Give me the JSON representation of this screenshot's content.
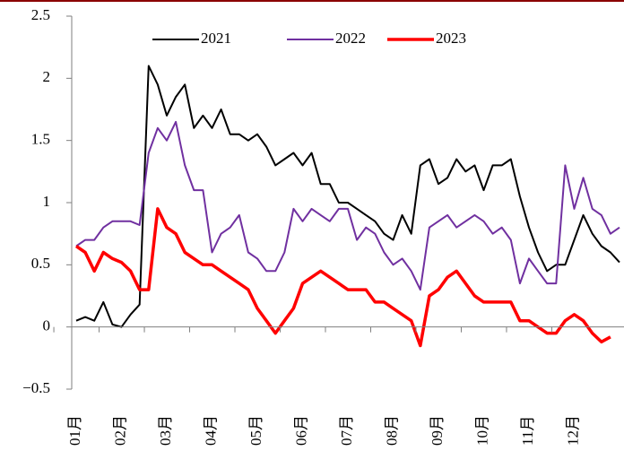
{
  "chart_data": {
    "type": "line",
    "x": [
      0,
      0.2,
      0.4,
      0.6,
      0.8,
      1,
      1.2,
      1.4,
      1.6,
      1.8,
      2,
      2.2,
      2.4,
      2.6,
      2.8,
      3,
      3.2,
      3.4,
      3.6,
      3.8,
      4,
      4.2,
      4.4,
      4.6,
      4.8,
      5,
      5.2,
      5.4,
      5.6,
      5.8,
      6,
      6.2,
      6.4,
      6.6,
      6.8,
      7,
      7.2,
      7.4,
      7.6,
      7.8,
      8,
      8.2,
      8.4,
      8.6,
      8.8,
      9,
      9.2,
      9.4,
      9.6,
      9.8,
      10,
      10.2,
      10.4,
      10.6,
      10.8,
      11,
      11.2,
      11.4,
      11.6,
      11.8,
      12
    ],
    "series": [
      {
        "name": "2021",
        "color": "#000000",
        "width": 2,
        "values": [
          0.05,
          0.08,
          0.05,
          0.2,
          0.02,
          0,
          0.1,
          0.18,
          2.1,
          1.95,
          1.7,
          1.85,
          1.95,
          1.6,
          1.7,
          1.6,
          1.75,
          1.55,
          1.55,
          1.5,
          1.55,
          1.45,
          1.3,
          1.35,
          1.4,
          1.3,
          1.4,
          1.15,
          1.15,
          1,
          1,
          0.95,
          0.9,
          0.85,
          0.75,
          0.7,
          0.9,
          0.75,
          1.3,
          1.35,
          1.15,
          1.2,
          1.35,
          1.25,
          1.3,
          1.1,
          1.3,
          1.3,
          1.35,
          1.05,
          0.8,
          0.6,
          0.45,
          0.5,
          0.5,
          0.7,
          0.9,
          0.75,
          0.65,
          0.6,
          0.52
        ]
      },
      {
        "name": "2022",
        "color": "#7030a0",
        "width": 2,
        "values": [
          0.65,
          0.7,
          0.7,
          0.8,
          0.85,
          0.85,
          0.85,
          0.82,
          1.4,
          1.6,
          1.5,
          1.65,
          1.3,
          1.1,
          1.1,
          0.6,
          0.75,
          0.8,
          0.9,
          0.6,
          0.55,
          0.45,
          0.45,
          0.6,
          0.95,
          0.85,
          0.95,
          0.9,
          0.85,
          0.95,
          0.95,
          0.7,
          0.8,
          0.75,
          0.6,
          0.5,
          0.55,
          0.45,
          0.3,
          0.8,
          0.85,
          0.9,
          0.8,
          0.85,
          0.9,
          0.85,
          0.75,
          0.8,
          0.7,
          0.35,
          0.55,
          0.45,
          0.35,
          0.35,
          1.3,
          0.95,
          1.2,
          0.95,
          0.9,
          0.75,
          0.8
        ]
      },
      {
        "name": "2023",
        "color": "#ff0000",
        "width": 3.5,
        "values": [
          0.65,
          0.6,
          0.45,
          0.6,
          0.55,
          0.52,
          0.45,
          0.3,
          0.3,
          0.95,
          0.8,
          0.75,
          0.6,
          0.55,
          0.5,
          0.5,
          0.45,
          0.4,
          0.35,
          0.3,
          0.15,
          0.05,
          -0.05,
          0.05,
          0.15,
          0.35,
          0.4,
          0.45,
          0.4,
          0.35,
          0.3,
          0.3,
          0.3,
          0.2,
          0.2,
          0.15,
          0.1,
          0.05,
          -0.15,
          0.25,
          0.3,
          0.4,
          0.45,
          0.35,
          0.25,
          0.2,
          0.2,
          0.2,
          0.2,
          0.05,
          0.05,
          0,
          -0.05,
          -0.05,
          0.05,
          0.1,
          0.05,
          -0.05,
          -0.12,
          -0.08,
          null
        ]
      }
    ],
    "xlim": [
      -0.1,
      12.1
    ],
    "xticks": [
      {
        "value": 0,
        "label": "01月"
      },
      {
        "value": 1,
        "label": "02月"
      },
      {
        "value": 2,
        "label": "03月"
      },
      {
        "value": 3,
        "label": "04月"
      },
      {
        "value": 4,
        "label": "05月"
      },
      {
        "value": 5,
        "label": "06月"
      },
      {
        "value": 6,
        "label": "07月"
      },
      {
        "value": 7,
        "label": "08月"
      },
      {
        "value": 8,
        "label": "09月"
      },
      {
        "value": 9,
        "label": "10月"
      },
      {
        "value": 10,
        "label": "11月"
      },
      {
        "value": 11,
        "label": "12月"
      }
    ],
    "ylim": [
      -0.5,
      2.5
    ],
    "yticks": [
      {
        "value": -0.5,
        "label": "−0.5"
      },
      0,
      0.5,
      1,
      1.5,
      2,
      2.5
    ],
    "legend": "top"
  }
}
